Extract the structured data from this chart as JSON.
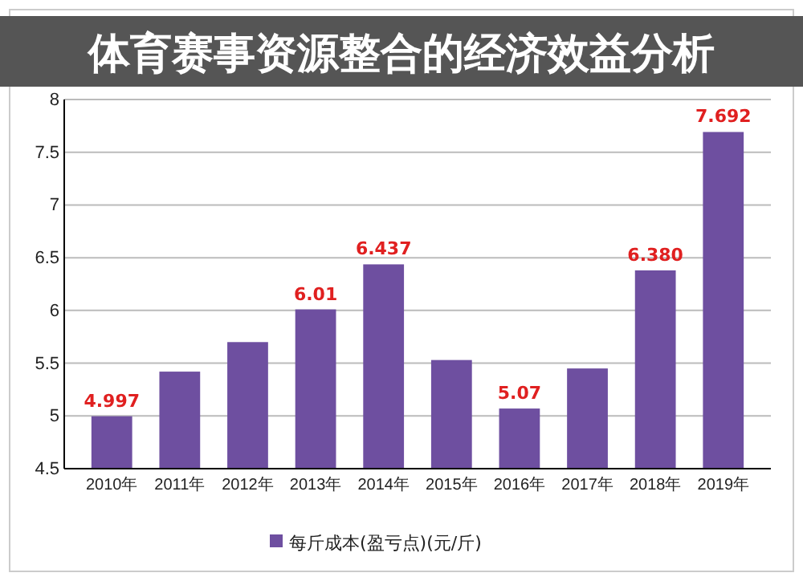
{
  "chart_data": {
    "type": "bar",
    "title": "体育赛事资源整合的经济效益分析",
    "categories": [
      "2010年",
      "2011年",
      "2012年",
      "2013年",
      "2014年",
      "2015年",
      "2016年",
      "2017年",
      "2018年",
      "2019年"
    ],
    "series": [
      {
        "name": "每斤成本(盈亏点)(元/斤)",
        "color": "#6e4fa0",
        "values": [
          4.997,
          5.42,
          5.7,
          6.01,
          6.437,
          5.53,
          5.07,
          5.45,
          6.38,
          7.692
        ],
        "value_labels": [
          "4.997",
          null,
          null,
          "6.01",
          "6.437",
          null,
          "5.07",
          null,
          "6.380",
          "7.692"
        ]
      }
    ],
    "ylim": [
      4.5,
      8
    ],
    "yticks": [
      4.5,
      5,
      5.5,
      6,
      6.5,
      7,
      7.5,
      8
    ],
    "grid": "y",
    "legend": "bottom"
  }
}
